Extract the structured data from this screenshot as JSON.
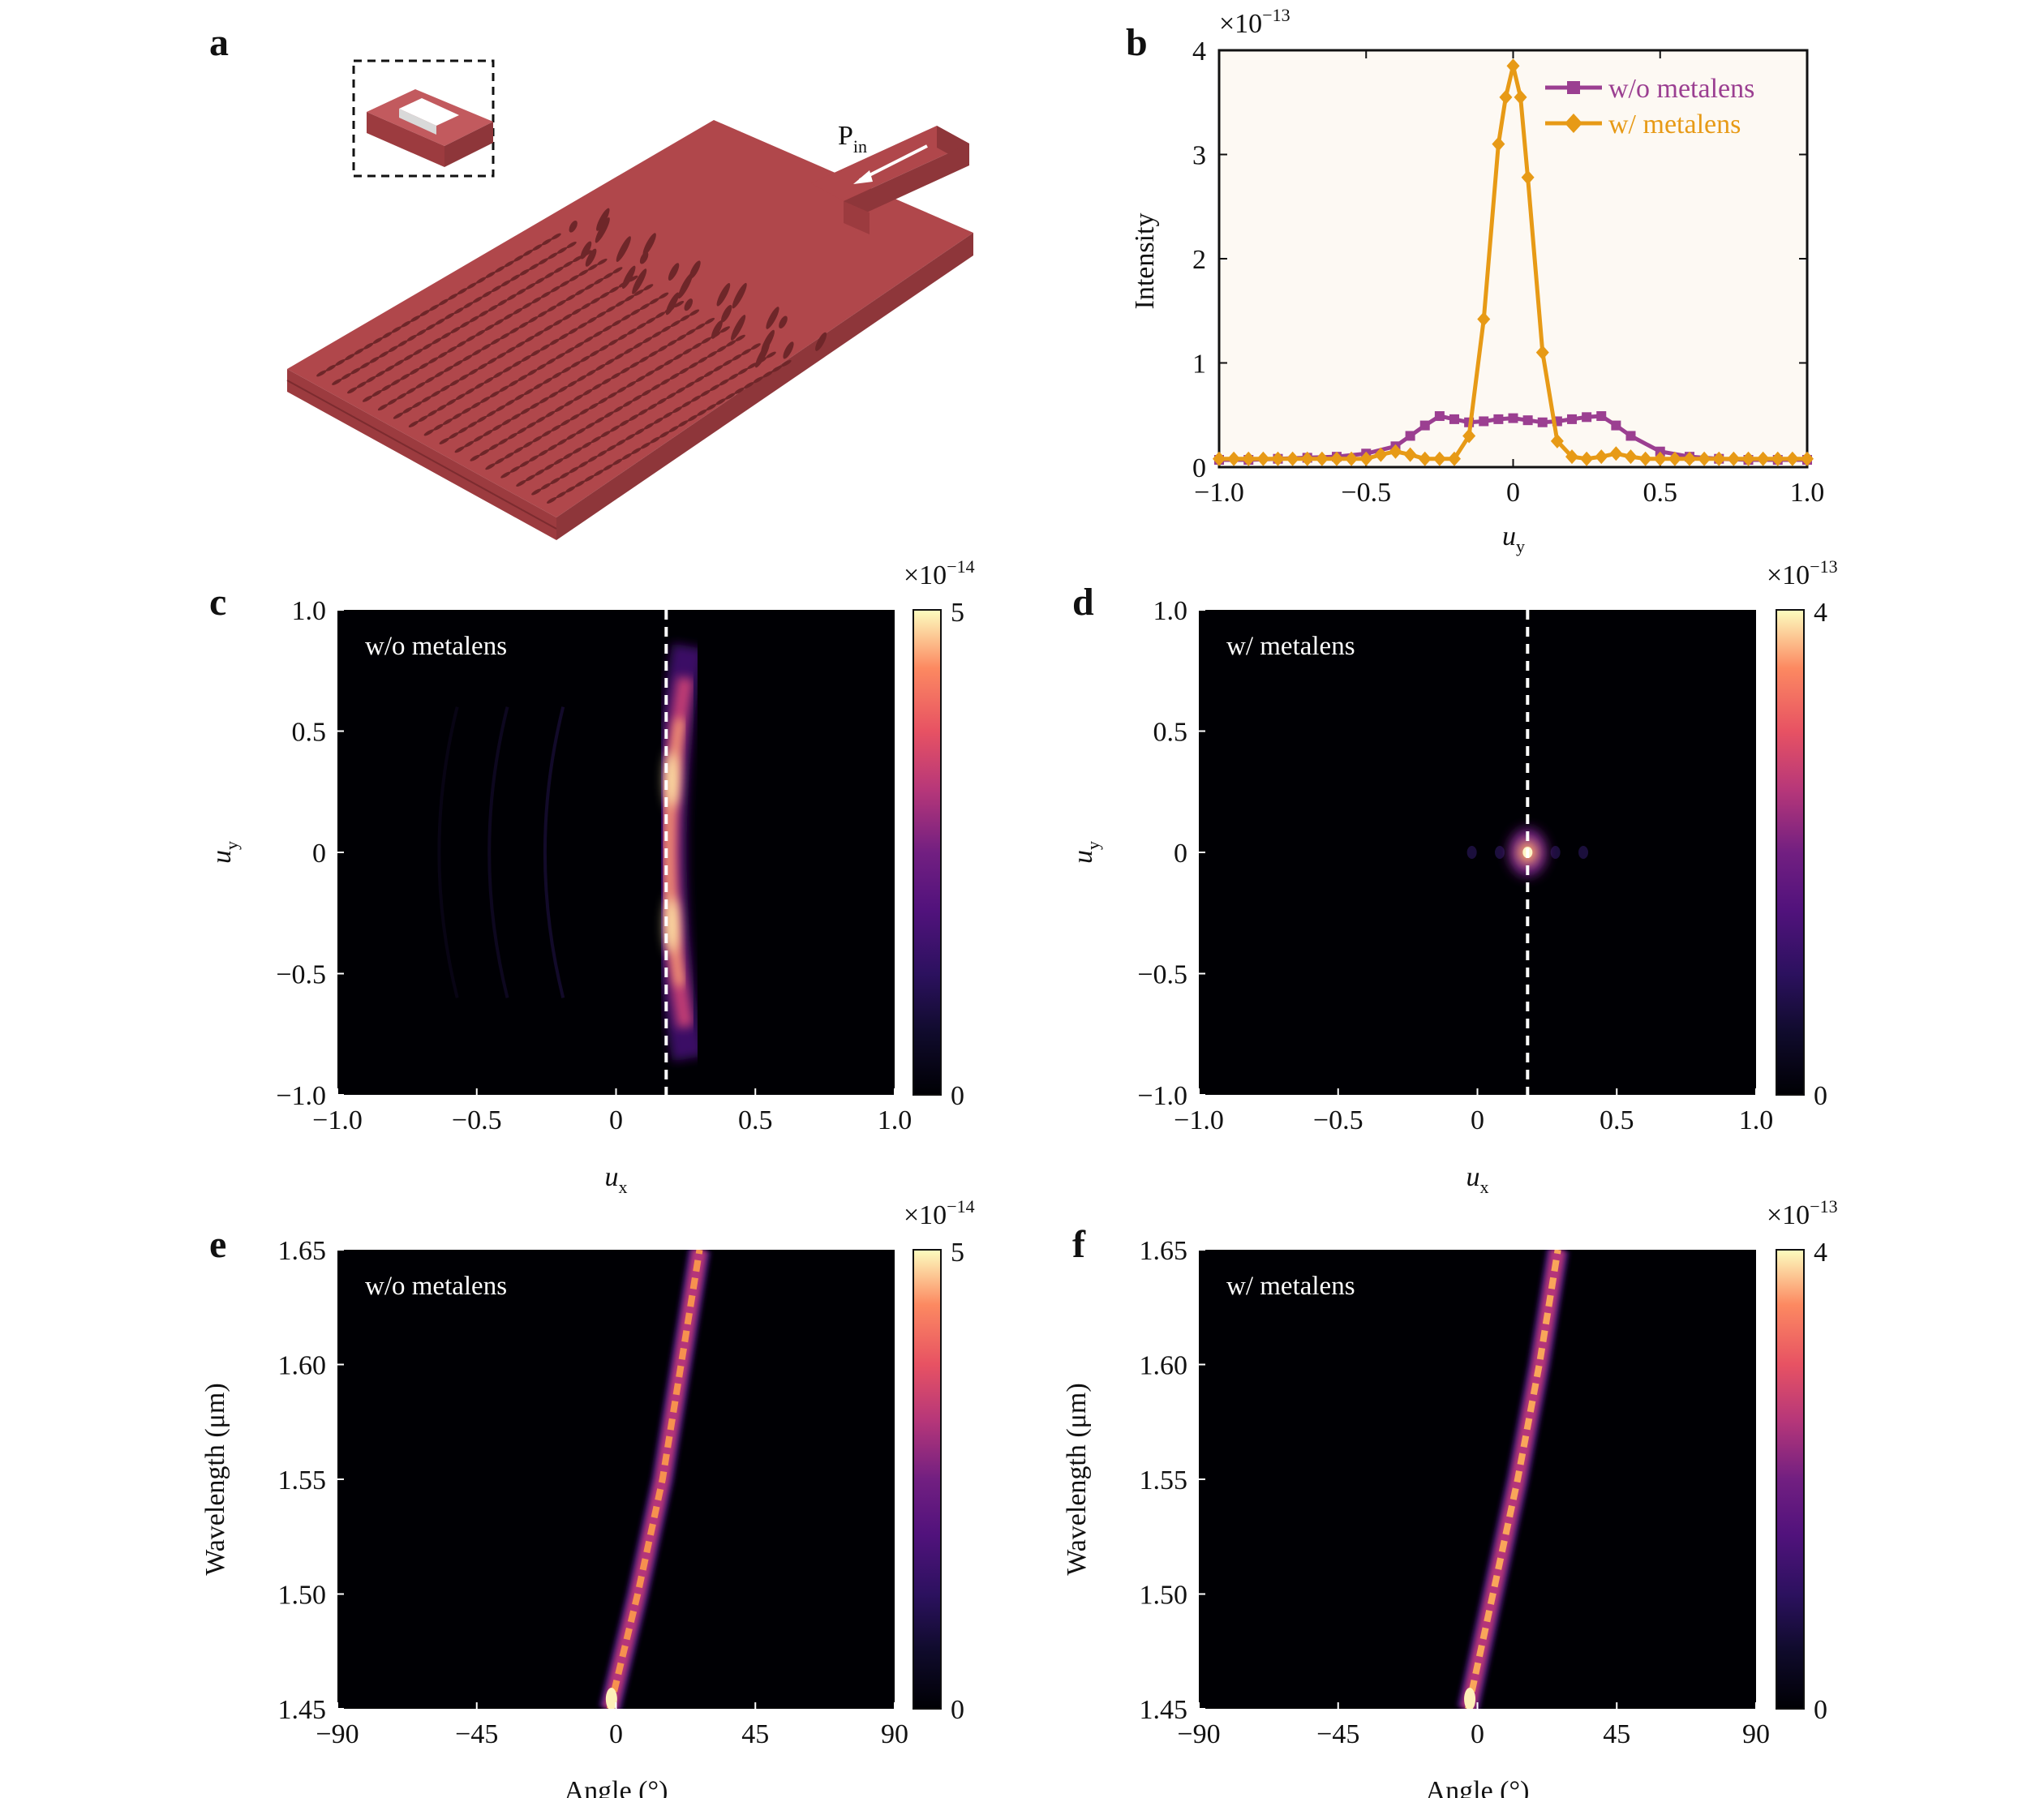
{
  "figure": {
    "panel_letters": [
      "a",
      "b",
      "c",
      "d",
      "e",
      "f"
    ],
    "panel_a": {
      "port_label": "P",
      "port_subscript": "in"
    }
  },
  "colors": {
    "device": "#b0474b",
    "device_dark": "#8e363a",
    "device_light": "#c25a5e",
    "series_without": "#9b3f91",
    "series_with": "#e79a16",
    "plot_bg": "#fdf9f3"
  },
  "chart_data": [
    {
      "panel": "b",
      "type": "line",
      "xlabel": "u",
      "xlabel_sub": "y",
      "ylabel": "Intensity",
      "exponent_label": "×10",
      "exponent_power": "−13",
      "xlim": [
        -1.0,
        1.0
      ],
      "ylim": [
        0,
        4
      ],
      "xticks": [
        "−1.0",
        "−0.5",
        "0",
        "0.5",
        "1.0"
      ],
      "yticks": [
        "0",
        "1",
        "2",
        "3",
        "4"
      ],
      "legend_position": "top-right",
      "series": [
        {
          "name": "w/o metalens",
          "marker": "square",
          "x": [
            -1.0,
            -0.9,
            -0.8,
            -0.7,
            -0.6,
            -0.5,
            -0.4,
            -0.35,
            -0.3,
            -0.25,
            -0.2,
            -0.15,
            -0.1,
            -0.05,
            0.0,
            0.05,
            0.1,
            0.15,
            0.2,
            0.25,
            0.3,
            0.35,
            0.4,
            0.5,
            0.6,
            0.7,
            0.8,
            0.9,
            1.0
          ],
          "y": [
            0.07,
            0.07,
            0.08,
            0.09,
            0.1,
            0.13,
            0.2,
            0.3,
            0.4,
            0.49,
            0.46,
            0.43,
            0.44,
            0.46,
            0.47,
            0.45,
            0.43,
            0.44,
            0.46,
            0.48,
            0.49,
            0.4,
            0.3,
            0.15,
            0.1,
            0.08,
            0.07,
            0.07,
            0.07
          ]
        },
        {
          "name": "w/ metalens",
          "marker": "diamond",
          "x": [
            -1.0,
            -0.95,
            -0.9,
            -0.85,
            -0.8,
            -0.75,
            -0.7,
            -0.65,
            -0.6,
            -0.55,
            -0.5,
            -0.45,
            -0.4,
            -0.35,
            -0.3,
            -0.25,
            -0.2,
            -0.15,
            -0.1,
            -0.05,
            -0.025,
            0.0,
            0.025,
            0.05,
            0.1,
            0.15,
            0.2,
            0.25,
            0.3,
            0.35,
            0.4,
            0.45,
            0.5,
            0.55,
            0.6,
            0.65,
            0.7,
            0.75,
            0.8,
            0.85,
            0.9,
            0.95,
            1.0
          ],
          "y": [
            0.08,
            0.08,
            0.08,
            0.08,
            0.08,
            0.08,
            0.08,
            0.08,
            0.08,
            0.08,
            0.08,
            0.12,
            0.15,
            0.12,
            0.08,
            0.08,
            0.08,
            0.3,
            1.42,
            3.1,
            3.55,
            3.85,
            3.55,
            2.78,
            1.1,
            0.25,
            0.1,
            0.08,
            0.1,
            0.13,
            0.1,
            0.08,
            0.08,
            0.08,
            0.08,
            0.08,
            0.08,
            0.08,
            0.08,
            0.08,
            0.08,
            0.08,
            0.08
          ]
        }
      ]
    },
    {
      "panel": "c",
      "type": "heatmap",
      "annotation": "w/o metalens",
      "xlabel": "u",
      "xlabel_sub": "x",
      "ylabel": "u",
      "ylabel_sub": "y",
      "xlim": [
        -1.0,
        1.0
      ],
      "ylim": [
        -1.0,
        1.0
      ],
      "xticks": [
        "−1.0",
        "−0.5",
        "0",
        "0.5",
        "1.0"
      ],
      "yticks": [
        "1.0",
        "0.5",
        "0",
        "−0.5",
        "−1.0"
      ],
      "dashed_line_x": 0.18,
      "colorbar": {
        "min": "0",
        "max": "5",
        "exponent_label": "×10",
        "exponent_power": "−14"
      },
      "feature": "curved arc of intensity along u_x≈0.18–0.25 spanning u_y −0.8 to 0.8, peaks near u_y ±0.3"
    },
    {
      "panel": "d",
      "type": "heatmap",
      "annotation": "w/ metalens",
      "xlabel": "u",
      "xlabel_sub": "x",
      "ylabel": "u",
      "ylabel_sub": "y",
      "xlim": [
        -1.0,
        1.0
      ],
      "ylim": [
        -1.0,
        1.0
      ],
      "xticks": [
        "−1.0",
        "−0.5",
        "0",
        "0.5",
        "1.0"
      ],
      "yticks": [
        "1.0",
        "0.5",
        "0",
        "−0.5",
        "−1.0"
      ],
      "dashed_line_x": 0.18,
      "colorbar": {
        "min": "0",
        "max": "4",
        "exponent_label": "×10",
        "exponent_power": "−13"
      },
      "feature": "single focused spot at u_x≈0.18, u_y≈0"
    },
    {
      "panel": "e",
      "type": "heatmap",
      "annotation": "w/o metalens",
      "xlabel": "Angle (°)",
      "ylabel": "Wavelength (μm)",
      "xlim": [
        -90,
        90
      ],
      "ylim": [
        1.45,
        1.65
      ],
      "xticks": [
        "−90",
        "−45",
        "0",
        "45",
        "90"
      ],
      "yticks": [
        "1.65",
        "1.60",
        "1.55",
        "1.50",
        "1.45"
      ],
      "colorbar": {
        "min": "0",
        "max": "5",
        "exponent_label": "×10",
        "exponent_power": "−14"
      },
      "ridge": {
        "wavelength": [
          1.45,
          1.5,
          1.55,
          1.6,
          1.65
        ],
        "angle": [
          -2,
          7,
          15,
          21,
          27
        ]
      }
    },
    {
      "panel": "f",
      "type": "heatmap",
      "annotation": "w/ metalens",
      "xlabel": "Angle (°)",
      "ylabel": "Wavelength (μm)",
      "xlim": [
        -90,
        90
      ],
      "ylim": [
        1.45,
        1.65
      ],
      "xticks": [
        "−90",
        "−45",
        "0",
        "45",
        "90"
      ],
      "yticks": [
        "1.65",
        "1.60",
        "1.55",
        "1.50",
        "1.45"
      ],
      "colorbar": {
        "min": "0",
        "max": "4",
        "exponent_label": "×10",
        "exponent_power": "−13"
      },
      "ridge": {
        "wavelength": [
          1.45,
          1.5,
          1.55,
          1.6,
          1.65
        ],
        "angle": [
          -3,
          5,
          13,
          20,
          26
        ]
      }
    }
  ]
}
